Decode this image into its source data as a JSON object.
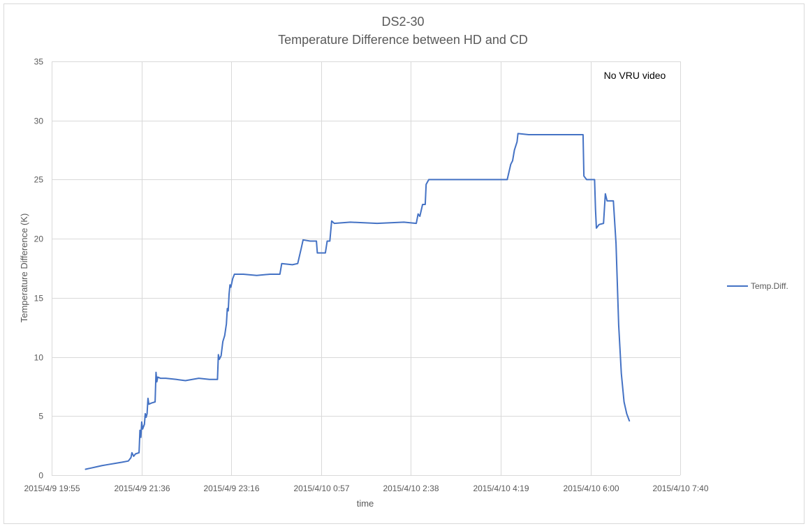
{
  "chart_data": {
    "type": "line",
    "title": "DS2-30",
    "subtitle": "Temperature Difference between HD and CD",
    "xlabel": "time",
    "ylabel": "Temperature Difference (K)",
    "ylim": [
      0,
      35
    ],
    "yticks": [
      0,
      5,
      10,
      15,
      20,
      25,
      30,
      35
    ],
    "xlim": [
      "2015-04-09T19:55",
      "2015-04-10T07:40"
    ],
    "xticks": [
      {
        "value": "2015-04-09T19:55",
        "label": "2015/4/9 19:55"
      },
      {
        "value": "2015-04-09T21:36",
        "label": "2015/4/9 21:36"
      },
      {
        "value": "2015-04-09T23:16",
        "label": "2015/4/9 23:16"
      },
      {
        "value": "2015-04-10T00:57",
        "label": "2015/4/10 0:57"
      },
      {
        "value": "2015-04-10T02:38",
        "label": "2015/4/10 2:38"
      },
      {
        "value": "2015-04-10T04:19",
        "label": "2015/4/10 4:19"
      },
      {
        "value": "2015-04-10T06:00",
        "label": "2015/4/10 6:00"
      },
      {
        "value": "2015-04-10T07:40",
        "label": "2015/4/10 7:40"
      }
    ],
    "grid": true,
    "legend_position": "right",
    "annotation": "No VRU video",
    "series": [
      {
        "name": "Temp.Diff.",
        "color": "#4472C4",
        "points": [
          [
            "2015-04-09T20:33",
            0.5
          ],
          [
            "2015-04-09T20:39",
            0.6
          ],
          [
            "2015-04-09T20:45",
            0.7
          ],
          [
            "2015-04-09T20:51",
            0.8
          ],
          [
            "2015-04-09T20:58",
            0.9
          ],
          [
            "2015-04-09T21:06",
            1.0
          ],
          [
            "2015-04-09T21:14",
            1.1
          ],
          [
            "2015-04-09T21:21",
            1.2
          ],
          [
            "2015-04-09T21:24",
            1.5
          ],
          [
            "2015-04-09T21:25",
            1.9
          ],
          [
            "2015-04-09T21:27",
            1.6
          ],
          [
            "2015-04-09T21:29",
            1.8
          ],
          [
            "2015-04-09T21:33",
            1.9
          ],
          [
            "2015-04-09T21:34",
            3.8
          ],
          [
            "2015-04-09T21:35",
            3.2
          ],
          [
            "2015-04-09T21:36",
            4.5
          ],
          [
            "2015-04-09T21:37",
            3.9
          ],
          [
            "2015-04-09T21:39",
            4.3
          ],
          [
            "2015-04-09T21:40",
            5.2
          ],
          [
            "2015-04-09T21:41",
            4.9
          ],
          [
            "2015-04-09T21:42",
            5.2
          ],
          [
            "2015-04-09T21:43",
            6.5
          ],
          [
            "2015-04-09T21:44",
            6.0
          ],
          [
            "2015-04-09T21:47",
            6.1
          ],
          [
            "2015-04-09T21:51",
            6.2
          ],
          [
            "2015-04-09T21:52",
            8.7
          ],
          [
            "2015-04-09T21:53",
            7.9
          ],
          [
            "2015-04-09T21:54",
            8.3
          ],
          [
            "2015-04-09T21:57",
            8.2
          ],
          [
            "2015-04-09T22:03",
            8.2
          ],
          [
            "2015-04-09T22:15",
            8.1
          ],
          [
            "2015-04-09T22:25",
            8.0
          ],
          [
            "2015-04-09T22:40",
            8.2
          ],
          [
            "2015-04-09T22:52",
            8.1
          ],
          [
            "2015-04-09T22:58",
            8.1
          ],
          [
            "2015-04-09T23:01",
            8.1
          ],
          [
            "2015-04-09T23:02",
            10.2
          ],
          [
            "2015-04-09T23:03",
            9.8
          ],
          [
            "2015-04-09T23:05",
            10.1
          ],
          [
            "2015-04-09T23:07",
            11.3
          ],
          [
            "2015-04-09T23:09",
            11.8
          ],
          [
            "2015-04-09T23:11",
            12.8
          ],
          [
            "2015-04-09T23:12",
            14.1
          ],
          [
            "2015-04-09T23:13",
            13.9
          ],
          [
            "2015-04-09T23:14",
            15.3
          ],
          [
            "2015-04-09T23:15",
            16.1
          ],
          [
            "2015-04-09T23:16",
            15.9
          ],
          [
            "2015-04-09T23:18",
            16.6
          ],
          [
            "2015-04-09T23:20",
            17.0
          ],
          [
            "2015-04-09T23:30",
            17.0
          ],
          [
            "2015-04-09T23:45",
            16.9
          ],
          [
            "2015-04-10T00:00",
            17.0
          ],
          [
            "2015-04-10T00:11",
            17.0
          ],
          [
            "2015-04-10T00:13",
            17.9
          ],
          [
            "2015-04-10T00:25",
            17.8
          ],
          [
            "2015-04-10T00:31",
            17.9
          ],
          [
            "2015-04-10T00:35",
            19.2
          ],
          [
            "2015-04-10T00:37",
            19.9
          ],
          [
            "2015-04-10T00:45",
            19.8
          ],
          [
            "2015-04-10T00:52",
            19.8
          ],
          [
            "2015-04-10T00:53",
            18.8
          ],
          [
            "2015-04-10T01:02",
            18.8
          ],
          [
            "2015-04-10T01:04",
            19.8
          ],
          [
            "2015-04-10T01:07",
            19.8
          ],
          [
            "2015-04-10T01:09",
            21.5
          ],
          [
            "2015-04-10T01:12",
            21.3
          ],
          [
            "2015-04-10T01:30",
            21.4
          ],
          [
            "2015-04-10T02:00",
            21.3
          ],
          [
            "2015-04-10T02:30",
            21.4
          ],
          [
            "2015-04-10T02:44",
            21.3
          ],
          [
            "2015-04-10T02:46",
            22.1
          ],
          [
            "2015-04-10T02:48",
            21.9
          ],
          [
            "2015-04-10T02:51",
            22.9
          ],
          [
            "2015-04-10T02:54",
            22.9
          ],
          [
            "2015-04-10T02:55",
            24.6
          ],
          [
            "2015-04-10T02:58",
            25.0
          ],
          [
            "2015-04-10T03:20",
            25.0
          ],
          [
            "2015-04-10T03:50",
            25.0
          ],
          [
            "2015-04-10T04:05",
            25.0
          ],
          [
            "2015-04-10T04:26",
            25.0
          ],
          [
            "2015-04-10T04:30",
            26.3
          ],
          [
            "2015-04-10T04:32",
            26.6
          ],
          [
            "2015-04-10T04:34",
            27.5
          ],
          [
            "2015-04-10T04:37",
            28.2
          ],
          [
            "2015-04-10T04:38",
            28.9
          ],
          [
            "2015-04-10T04:50",
            28.8
          ],
          [
            "2015-04-10T05:10",
            28.8
          ],
          [
            "2015-04-10T05:30",
            28.8
          ],
          [
            "2015-04-10T05:51",
            28.8
          ],
          [
            "2015-04-10T05:52",
            25.3
          ],
          [
            "2015-04-10T05:55",
            25.0
          ],
          [
            "2015-04-10T06:04",
            25.0
          ],
          [
            "2015-04-10T06:05",
            22.5
          ],
          [
            "2015-04-10T06:06",
            20.9
          ],
          [
            "2015-04-10T06:09",
            21.2
          ],
          [
            "2015-04-10T06:14",
            21.3
          ],
          [
            "2015-04-10T06:16",
            23.8
          ],
          [
            "2015-04-10T06:18",
            23.2
          ],
          [
            "2015-04-10T06:25",
            23.2
          ],
          [
            "2015-04-10T06:28",
            19.6
          ],
          [
            "2015-04-10T06:31",
            12.7
          ],
          [
            "2015-04-10T06:34",
            8.6
          ],
          [
            "2015-04-10T06:37",
            6.2
          ],
          [
            "2015-04-10T06:40",
            5.2
          ],
          [
            "2015-04-10T06:43",
            4.6
          ]
        ]
      }
    ]
  }
}
